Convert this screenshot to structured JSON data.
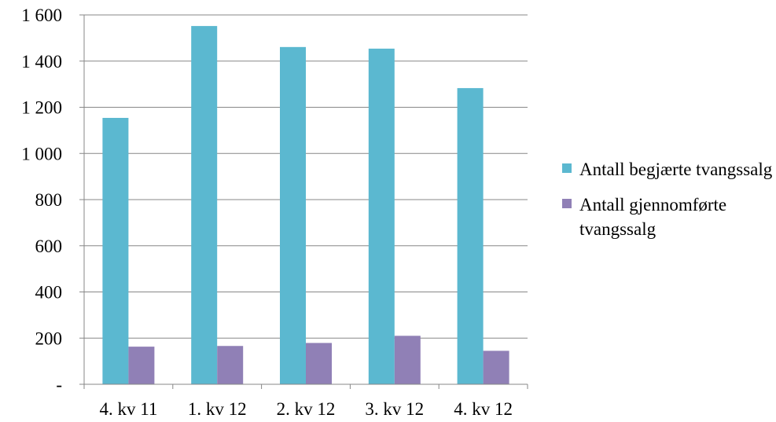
{
  "chart_data": {
    "type": "bar",
    "title": "",
    "xlabel": "",
    "ylabel": "",
    "categories": [
      "4. kv 11",
      "1. kv 12",
      "2. kv  12",
      "3. kv 12",
      "4. kv 12"
    ],
    "series": [
      {
        "name": "Antall begjærte tvangssalg",
        "color": "#5bb8d0",
        "values": [
          1154,
          1552,
          1461,
          1454,
          1283
        ]
      },
      {
        "name": "Antall gjennomførte tvangssalg",
        "color": "#9080b6",
        "values": [
          163,
          166,
          179,
          210,
          145
        ]
      }
    ],
    "ylim": [
      0,
      1600
    ],
    "yticks": [
      0,
      200,
      400,
      600,
      800,
      1000,
      1200,
      1400,
      1600
    ],
    "ytick_labels": [
      "-",
      "200",
      "400",
      "600",
      "800",
      "1 000",
      "1 200",
      "1 400",
      "1 600"
    ],
    "grid": true,
    "legend_position": "right"
  }
}
